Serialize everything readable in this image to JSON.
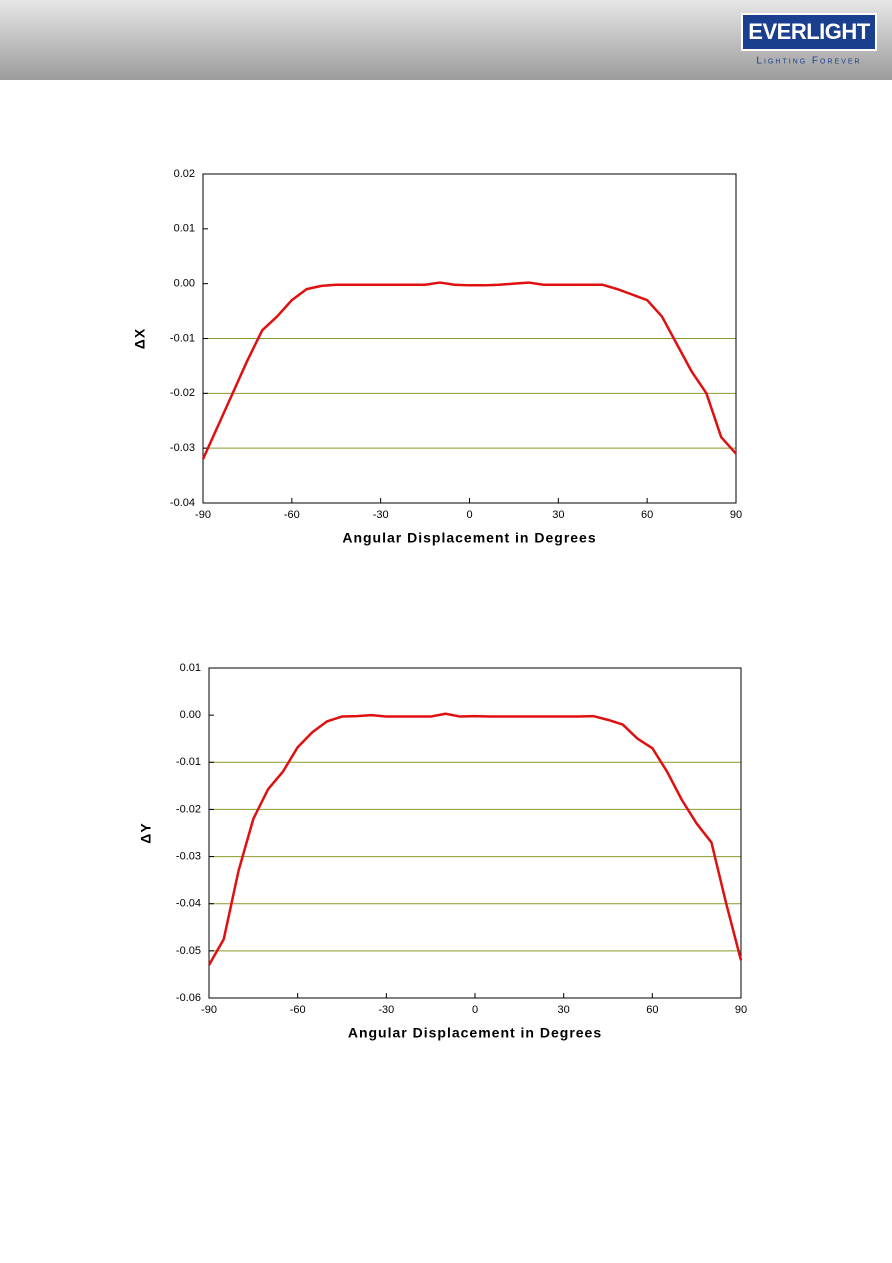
{
  "header": {
    "logo": "EVERLIGHT",
    "tagline": "Lighting Forever"
  },
  "chart_data": [
    {
      "type": "line",
      "xlabel": "Angular Displacement in Degrees",
      "ylabel": "ΔX",
      "x": [
        -90,
        -85,
        -80,
        -75,
        -70,
        -65,
        -60,
        -55,
        -50,
        -45,
        -40,
        -35,
        -30,
        -25,
        -20,
        -15,
        -10,
        -5,
        0,
        5,
        10,
        15,
        20,
        25,
        30,
        35,
        40,
        45,
        50,
        55,
        60,
        65,
        70,
        75,
        80,
        85,
        90
      ],
      "series": [
        {
          "color": "#e01010",
          "values": [
            -0.032,
            -0.026,
            -0.02,
            -0.014,
            -0.0085,
            -0.006,
            -0.003,
            -0.001,
            -0.0004,
            -0.0002,
            -0.0002,
            -0.0002,
            -0.0002,
            -0.0002,
            -0.0002,
            -0.0002,
            0.0002,
            -0.0002,
            -0.0003,
            -0.0003,
            -0.0002,
            0,
            0.0002,
            -0.0002,
            -0.0002,
            -0.0002,
            -0.0002,
            -0.0002,
            -0.001,
            -0.002,
            -0.003,
            -0.006,
            -0.011,
            -0.016,
            -0.02,
            -0.028,
            -0.031
          ]
        }
      ],
      "xlim": [
        -90,
        90
      ],
      "xticks": [
        -90,
        -60,
        -30,
        0,
        30,
        60,
        90
      ],
      "ylim": [
        -0.04,
        0.02
      ],
      "yticks": [
        {
          "value": 0.02,
          "label": "0.02"
        },
        {
          "value": 0.01,
          "label": "0.01"
        },
        {
          "value": 0,
          "label": "0.00"
        },
        {
          "value": -0.01,
          "label": "-0.01"
        },
        {
          "value": -0.02,
          "label": "-0.02"
        },
        {
          "value": -0.03,
          "label": "-0.03"
        },
        {
          "value": -0.04,
          "label": "-0.04"
        }
      ],
      "grid_lines": [
        -0.01,
        -0.02,
        -0.03
      ],
      "grid_color": "#8a9a2a"
    },
    {
      "type": "line",
      "xlabel": "Angular Displacement in Degrees",
      "ylabel": "ΔY",
      "x": [
        -90,
        -85,
        -80,
        -75,
        -70,
        -65,
        -60,
        -55,
        -50,
        -45,
        -40,
        -35,
        -30,
        -25,
        -20,
        -15,
        -10,
        -5,
        0,
        5,
        10,
        15,
        20,
        25,
        30,
        35,
        40,
        45,
        50,
        55,
        60,
        65,
        70,
        75,
        80,
        85,
        90
      ],
      "series": [
        {
          "color": "#e01010",
          "values": [
            -0.053,
            -0.0475,
            -0.033,
            -0.022,
            -0.0157,
            -0.012,
            -0.0068,
            -0.0036,
            -0.0013,
            -0.0003,
            -0.0002,
            0,
            -0.0003,
            -0.0003,
            -0.0003,
            -0.0003,
            0.0003,
            -0.0003,
            -0.0002,
            -0.0003,
            -0.0003,
            -0.0003,
            -0.0003,
            -0.0003,
            -0.0003,
            -0.0003,
            -0.0002,
            -0.001,
            -0.002,
            -0.005,
            -0.007,
            -0.012,
            -0.018,
            -0.023,
            -0.027,
            -0.04,
            -0.052
          ]
        }
      ],
      "xlim": [
        -90,
        90
      ],
      "xticks": [
        -90,
        -60,
        -30,
        0,
        30,
        60,
        90
      ],
      "ylim": [
        -0.06,
        0.01
      ],
      "yticks": [
        {
          "value": 0.01,
          "label": "0.01"
        },
        {
          "value": 0,
          "label": "0.00"
        },
        {
          "value": -0.01,
          "label": "-0.01"
        },
        {
          "value": -0.02,
          "label": "-0.02"
        },
        {
          "value": -0.03,
          "label": "-0.03"
        },
        {
          "value": -0.04,
          "label": "-0.04"
        },
        {
          "value": -0.05,
          "label": "-0.05"
        },
        {
          "value": -0.06,
          "label": "-0.06"
        }
      ],
      "grid_lines": [
        -0.01,
        -0.02,
        -0.03,
        -0.04,
        -0.05
      ],
      "grid_color": "#8a9a2a"
    }
  ]
}
